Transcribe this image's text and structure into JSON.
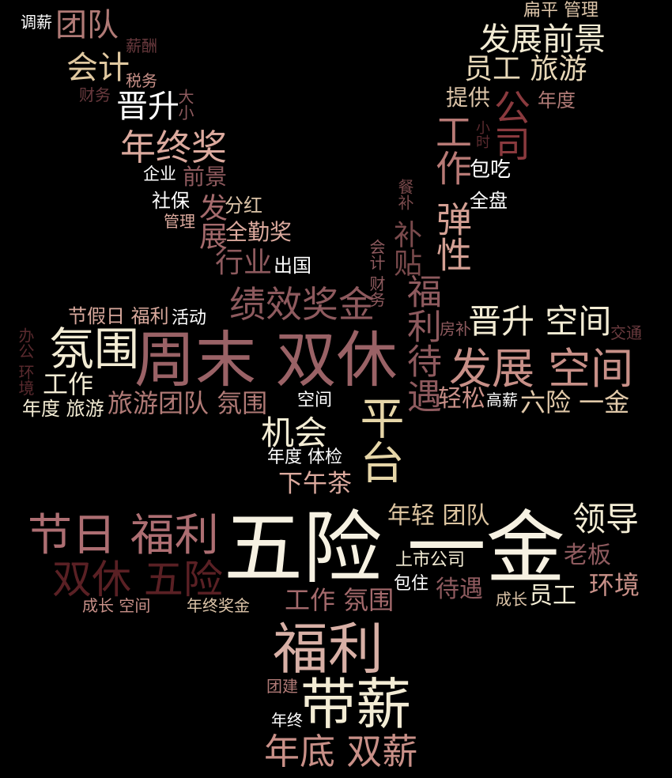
{
  "colors": {
    "background": "#000000",
    "cream": "#f3ecd4",
    "light": "#e6dcc4",
    "pink": "#d8a89c",
    "rose": "#c2837c",
    "mauve": "#a46a6c",
    "dark": "#7a4a4c",
    "maroon": "#571f22",
    "white": "#ffffff"
  },
  "words": [
    {
      "id": "w01",
      "text": "五险 一金",
      "color": "#f6f1e2"
    },
    {
      "id": "w02",
      "text": "周末 双休",
      "color": "#9a6266"
    },
    {
      "id": "w03",
      "text": "福利",
      "color": "#d8b0a6"
    },
    {
      "id": "w04",
      "text": "带薪",
      "color": "#f3ecd4"
    },
    {
      "id": "w05",
      "text": "节日 福利",
      "color": "#ad6e72"
    },
    {
      "id": "w06",
      "text": "发展 空间",
      "color": "#c89088"
    },
    {
      "id": "w07",
      "text": "双休 五险",
      "color": "#5a2024"
    },
    {
      "id": "w08",
      "text": "氛围",
      "color": "#f3ecd4"
    },
    {
      "id": "w09",
      "text": "福利待遇",
      "color": "#8e5a5e"
    },
    {
      "id": "w10",
      "text": "年底 双薪",
      "color": "#c99088"
    },
    {
      "id": "w11",
      "text": "绩效奖金",
      "color": "#8e5a5e"
    },
    {
      "id": "w12",
      "text": "平台",
      "color": "#e6d6a8"
    },
    {
      "id": "w13",
      "text": "年终奖",
      "color": "#dcaa9e"
    },
    {
      "id": "w14",
      "text": "发展前景",
      "color": "#f3ecd4"
    },
    {
      "id": "w15",
      "text": "机会",
      "color": "#f3ecd4"
    },
    {
      "id": "w16",
      "text": "领导",
      "color": "#f3ecd4"
    },
    {
      "id": "w17",
      "text": "晋升 空间",
      "color": "#f3ecd4"
    },
    {
      "id": "w18",
      "text": "工作",
      "color": "#b87a76"
    },
    {
      "id": "w19",
      "text": "公司",
      "color": "#8a3a3e"
    },
    {
      "id": "w20",
      "text": "弹性",
      "color": "#d4a094"
    },
    {
      "id": "w21",
      "text": "员工 旅游",
      "color": "#e8d8b8"
    },
    {
      "id": "w22",
      "text": "团队",
      "color": "#b07a76"
    },
    {
      "id": "w23",
      "text": "会计",
      "color": "#e0c8a0"
    },
    {
      "id": "w24",
      "text": "晋升",
      "color": "#ffffff"
    },
    {
      "id": "w25",
      "text": "环境",
      "color": "#c89088"
    },
    {
      "id": "w26",
      "text": "工作 氛围",
      "color": "#a46a6c"
    },
    {
      "id": "w27",
      "text": "旅游团队 氛围",
      "color": "#b07a76"
    },
    {
      "id": "w28",
      "text": "六险 一金",
      "color": "#e0c8a8"
    },
    {
      "id": "w29",
      "text": "工作",
      "color": "#f3ecd4"
    },
    {
      "id": "w30",
      "text": "年轻 团队",
      "color": "#dcc4a0"
    },
    {
      "id": "w31",
      "text": "待遇",
      "color": "#8e5a5e"
    },
    {
      "id": "w32",
      "text": "老板",
      "color": "#8e5a5e"
    },
    {
      "id": "w33",
      "text": "员工",
      "color": "#f3ecd4"
    },
    {
      "id": "w34",
      "text": "行业",
      "color": "#8e5a5e"
    },
    {
      "id": "w35",
      "text": "下午茶",
      "color": "#dcaa9e"
    },
    {
      "id": "w36",
      "text": "前景",
      "color": "#8e5a5e"
    },
    {
      "id": "w37",
      "text": "发展",
      "color": "#a46a6c"
    },
    {
      "id": "w38",
      "text": "全勤奖",
      "color": "#dcaa9e"
    },
    {
      "id": "w39",
      "text": "轻松",
      "color": "#c89088"
    },
    {
      "id": "w40",
      "text": "补贴",
      "color": "#7a4a4c"
    },
    {
      "id": "w41",
      "text": "提供",
      "color": "#dcc4a8"
    },
    {
      "id": "w42",
      "text": "年度",
      "color": "#b07a76"
    },
    {
      "id": "w43",
      "text": "包吃",
      "color": "#ffffff"
    },
    {
      "id": "w44",
      "text": "全盘",
      "color": "#ffffff"
    },
    {
      "id": "w45",
      "text": "扁平 管理",
      "color": "#dcc4a8"
    },
    {
      "id": "w46",
      "text": "调薪",
      "color": "#ffffff"
    },
    {
      "id": "w47",
      "text": "薪酬",
      "color": "#6a3a3e"
    },
    {
      "id": "w48",
      "text": "税务",
      "color": "#c89088"
    },
    {
      "id": "w49",
      "text": "财务",
      "color": "#6a3a3e"
    },
    {
      "id": "w50",
      "text": "大小",
      "color": "#8e5a5e"
    },
    {
      "id": "w51",
      "text": "企业",
      "color": "#ffffff"
    },
    {
      "id": "w52",
      "text": "社保",
      "color": "#ffffff"
    },
    {
      "id": "w53",
      "text": "分红",
      "color": "#dcc4a8"
    },
    {
      "id": "w54",
      "text": "管理",
      "color": "#dcaa9e"
    },
    {
      "id": "w55",
      "text": "出国",
      "color": "#ffffff"
    },
    {
      "id": "w56",
      "text": "节假日 福利",
      "color": "#d8a89c"
    },
    {
      "id": "w57",
      "text": "活动",
      "color": "#ffffff"
    },
    {
      "id": "w58",
      "text": "会计 财务",
      "color": "#8e5a5e"
    },
    {
      "id": "w59",
      "text": "房补",
      "color": "#8e5a5e"
    },
    {
      "id": "w60",
      "text": "交通",
      "color": "#6a3a3e"
    },
    {
      "id": "w61",
      "text": "办公 环境",
      "color": "#5a2a2e"
    },
    {
      "id": "w62",
      "text": "年度 旅游",
      "color": "#f3ecd4"
    },
    {
      "id": "w63",
      "text": "空间",
      "color": "#ffffff"
    },
    {
      "id": "w64",
      "text": "高薪",
      "color": "#ffffff"
    },
    {
      "id": "w65",
      "text": "年度 体检",
      "color": "#ffffff"
    },
    {
      "id": "w66",
      "text": "上市公司",
      "color": "#f3ecd4"
    },
    {
      "id": "w67",
      "text": "包住",
      "color": "#ffffff"
    },
    {
      "id": "w68",
      "text": "成长",
      "color": "#dcc4a8"
    },
    {
      "id": "w69",
      "text": "成长 空间",
      "color": "#c89088"
    },
    {
      "id": "w70",
      "text": "年终奖金",
      "color": "#dcc4a8"
    },
    {
      "id": "w71",
      "text": "团建",
      "color": "#b07a76"
    },
    {
      "id": "w72",
      "text": "年终",
      "color": "#ffffff"
    },
    {
      "id": "w73",
      "text": "餐补",
      "color": "#7a4a4c"
    },
    {
      "id": "w74",
      "text": "小时",
      "color": "#5a2a2e"
    }
  ]
}
